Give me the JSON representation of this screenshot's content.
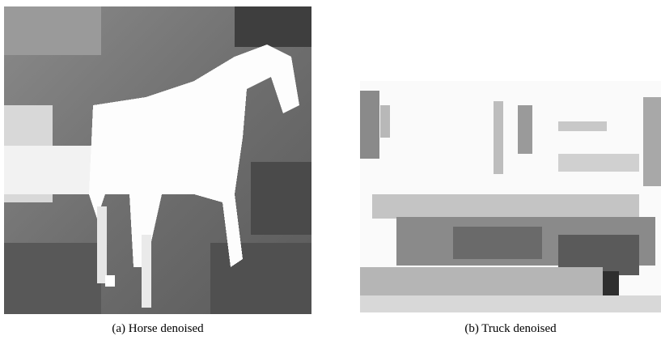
{
  "figures": [
    {
      "caption": "(a) Horse denoised"
    },
    {
      "caption": "(b) Truck denoised"
    }
  ]
}
